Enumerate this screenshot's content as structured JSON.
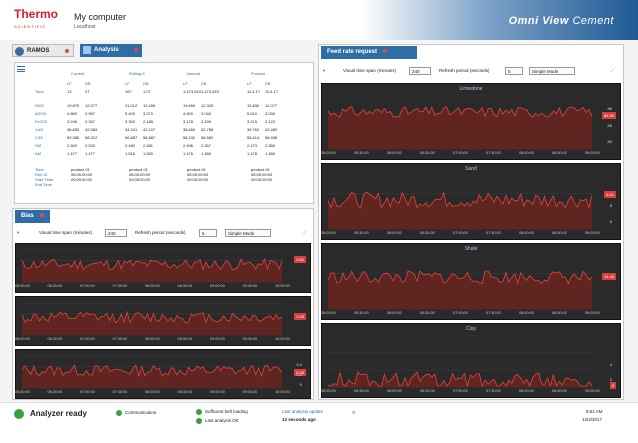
{
  "header": {
    "logo_main": "Thermo",
    "logo_sub": "SCIENTIFIC",
    "computer": "My computer",
    "host": "Localhost",
    "brand_a": "Omni View",
    "brand_b": "Cement"
  },
  "left": {
    "tab_ramos": "RAMOS",
    "tab_analysis": "Analysis",
    "table": {
      "col_groups": [
        "Current",
        "Rolling 8",
        "Interval",
        "Product"
      ],
      "sub_headers": [
        "LF",
        "DB"
      ],
      "time_label": "Time",
      "time_values": [
        "13",
        "27",
        "167",
        "1.07",
        "1,473,943",
        "1,473,943",
        "11:4.17",
        "11:4.17"
      ],
      "rows": [
        {
          "label": "SiO2",
          "values": [
            "19.870",
            "12.077",
            "21.012",
            "12.406",
            "19.890",
            "12.325",
            "19.830",
            "12.077"
          ]
        },
        {
          "label": "Al2O3",
          "values": [
            "4.860",
            "2.997",
            "5.400",
            "3.270",
            "4.900",
            "3.040",
            "5.010",
            "3.030"
          ]
        },
        {
          "label": "Fe2O3",
          "values": [
            "3.246",
            "2.267",
            "3.300",
            "2.185",
            "3.178",
            "2.439",
            "3.219",
            "2.123"
          ]
        },
        {
          "label": "CaO",
          "values": [
            "36.850",
            "42.383",
            "34.241",
            "42.107",
            "36.650",
            "42.758",
            "36.762",
            "42.460"
          ]
        },
        {
          "label": "C3S",
          "values": [
            "59.356",
            "58.312",
            "56.887",
            "58.887",
            "58.242",
            "58.562",
            "58.414",
            "58.458"
          ]
        },
        {
          "label": "SM",
          "values": [
            "2.502",
            "2.533",
            "2.480",
            "2.481",
            "2.496",
            "2.357",
            "2.473",
            "2.380"
          ]
        },
        {
          "label": "AM",
          "values": [
            "1.477",
            "1.477",
            "1.516",
            "1.580",
            "1.476",
            "1.480",
            "1.478",
            "1.480"
          ]
        }
      ],
      "footer_labels": [
        "Time",
        "Run ID",
        "Start Time",
        "End Time"
      ],
      "footer_groups": [
        [
          "product 01",
          "08:05:00:00",
          "09:05:00:00"
        ],
        [
          "product 01",
          "08:05:00:00",
          "09:05:00:00"
        ],
        [
          "product 01",
          "08:05:00:00",
          "09:05:00:00"
        ],
        [
          "product 01",
          "08:05:00:00",
          "09:05:00:00"
        ]
      ]
    },
    "bias": {
      "tab": "Bias",
      "span_label": "Visual time span",
      "span_unit": "(minutes)",
      "span_value": "240",
      "refresh_label": "Refresh period",
      "refresh_unit": "(seconds)",
      "refresh_value": "5",
      "mode": "Simple Mode",
      "x_ticks": [
        "06:00:00",
        "06:30:00",
        "07:00:00",
        "07:30:00",
        "08:00:00",
        "08:30:00",
        "09:00:00",
        "09:30:00",
        "10:00:00"
      ],
      "charts": [
        {
          "badge": "0.62",
          "y_ticks": []
        },
        {
          "badge": "1.00",
          "y_ticks": []
        },
        {
          "badge": "0.28",
          "y_ticks": [
            "0.4",
            "0.2",
            "0"
          ]
        }
      ]
    }
  },
  "right": {
    "tab": "Feed rate request",
    "span_label": "Visual time span",
    "span_unit": "(minutes)",
    "span_value": "240",
    "refresh_label": "Refresh period",
    "refresh_unit": "(seconds)",
    "refresh_value": "5",
    "mode": "Simple Mode",
    "x_ticks": [
      "05:00:00",
      "05:30:00",
      "06:00:00",
      "06:30:00",
      "07:00:00",
      "07:30:00",
      "08:00:00",
      "08:30:00",
      "09:00:00"
    ],
    "charts": [
      {
        "title": "Limestone",
        "badge": "84.55",
        "y_ticks": [
          "86",
          "85",
          "80"
        ]
      },
      {
        "title": "Sand",
        "badge": "8.41",
        "y_ticks": [
          "",
          "8",
          "6"
        ]
      },
      {
        "title": "Shale",
        "badge": "11.48",
        "y_ticks": [
          "",
          "",
          ""
        ]
      },
      {
        "title": "Clay",
        "badge": "0",
        "y_ticks": [
          "",
          "4",
          "2"
        ]
      }
    ]
  },
  "status": {
    "analyzer": "Analyzer ready",
    "communication": "Communication",
    "belt_loading": "Sufficient belt loading",
    "last_analysis": "Last analysis OK",
    "update_label": "Last analysis update",
    "update_value": "13 seconds ago",
    "time": "9:52 AM",
    "date": "12/4/2017",
    "colors": {
      "ok": "#3aa043",
      "alert": "#d6403a",
      "accent": "#2f6ea4"
    }
  }
}
